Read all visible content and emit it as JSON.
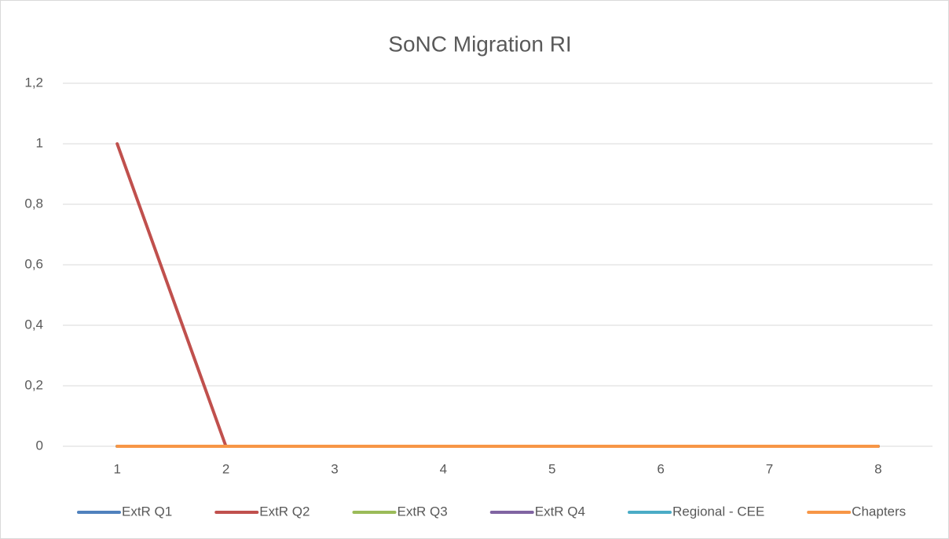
{
  "chart_data": {
    "type": "line",
    "title": "SoNC Migration RI",
    "categories": [
      "1",
      "2",
      "3",
      "4",
      "5",
      "6",
      "7",
      "8"
    ],
    "series": [
      {
        "name": "ExtR Q1",
        "color": "#4f81bd",
        "values": [
          0,
          0,
          0,
          0,
          0,
          0,
          0,
          0
        ]
      },
      {
        "name": "ExtR Q2",
        "color": "#c0504d",
        "values": [
          1,
          0,
          0,
          0,
          0,
          0,
          0,
          0
        ]
      },
      {
        "name": "ExtR Q3",
        "color": "#9bbb59",
        "values": [
          0,
          0,
          0,
          0,
          0,
          0,
          0,
          0
        ]
      },
      {
        "name": "ExtR Q4",
        "color": "#8064a2",
        "values": [
          0,
          0,
          0,
          0,
          0,
          0,
          0,
          0
        ]
      },
      {
        "name": "Regional - CEE",
        "color": "#4bacc6",
        "values": [
          0,
          0,
          0,
          0,
          0,
          0,
          0,
          0
        ]
      },
      {
        "name": "Chapters",
        "color": "#f79646",
        "values": [
          0,
          0,
          0,
          0,
          0,
          0,
          0,
          0
        ]
      }
    ],
    "ylim": [
      0,
      1.2
    ],
    "yticks": [
      0,
      {
        "value": 0.2,
        "label": "0,2"
      },
      {
        "value": 0.4,
        "label": "0,4"
      },
      {
        "value": 0.6,
        "label": "0,6"
      },
      {
        "value": 0.8,
        "label": "0,8"
      },
      1,
      {
        "value": 1.2,
        "label": "1,2"
      }
    ],
    "grid": true,
    "legend": "bottom"
  }
}
